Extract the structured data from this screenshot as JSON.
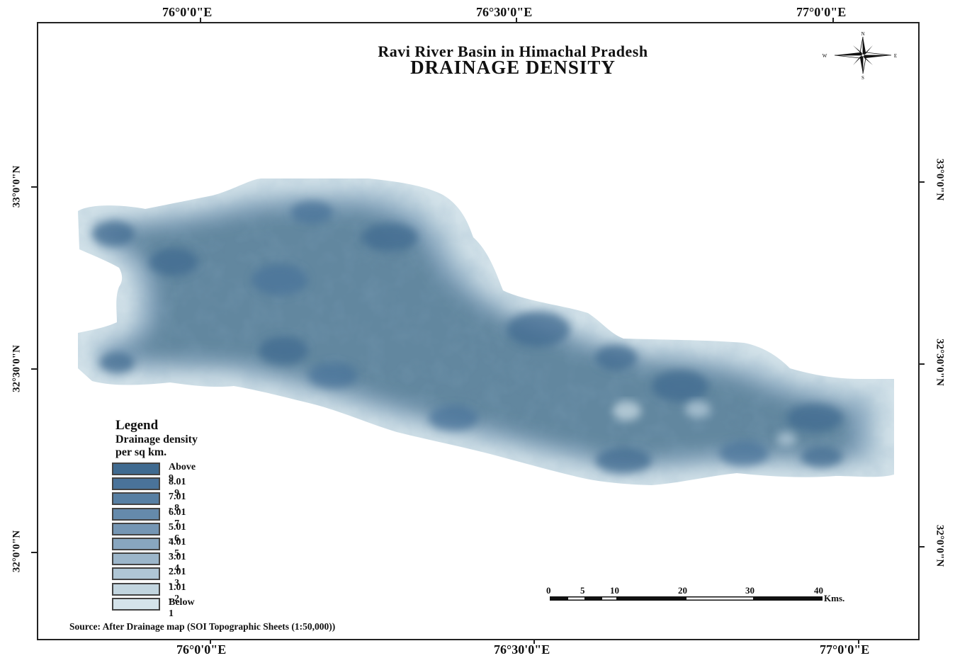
{
  "title": "Ravi River Basin in Himachal Pradesh",
  "subtitle": "DRAINAGE DENSITY",
  "graticule": {
    "top_labels": [
      "76°0'0\"E",
      "76°30'0\"E",
      "77°0'0\"E"
    ],
    "bottom_labels": [
      "76°0'0\"E",
      "76°30'0\"E",
      "77°0'0\"E"
    ],
    "left_labels": [
      "33°0'0\"N",
      "32°30'0\"N",
      "32°0'0\"N"
    ],
    "right_labels": [
      "33°0'0\"N",
      "32°30'0\"N",
      "32°0'0\"N"
    ]
  },
  "compass": {
    "n": "N",
    "s": "S",
    "e": "E",
    "w": "W"
  },
  "legend": {
    "title": "Legend",
    "subtitle_line1": "Drainage density",
    "subtitle_line2": "per sq km.",
    "classes": [
      {
        "label": "Above 9",
        "color": "#3f6a90"
      },
      {
        "label": "8.01 - 9",
        "color": "#4a739a"
      },
      {
        "label": "7.01 - 8",
        "color": "#577fa3"
      },
      {
        "label": "6.01 - 7",
        "color": "#658aab"
      },
      {
        "label": "5.01 - 6",
        "color": "#7596b4"
      },
      {
        "label": "4.01 - 5",
        "color": "#88a6bf"
      },
      {
        "label": "3.01 - 4",
        "color": "#9cb6ca"
      },
      {
        "label": "2.01 - 3",
        "color": "#afc6d5"
      },
      {
        "label": "1.01 - 2",
        "color": "#c2d5df"
      },
      {
        "label": "Below 1",
        "color": "#d4e3ea"
      }
    ]
  },
  "scale_bar": {
    "ticks": [
      "0",
      "5",
      "10",
      "20",
      "30",
      "40"
    ],
    "unit": "Kms."
  },
  "source": "Source: After Drainage map (SOI Topographic Sheets (1:50,000))"
}
